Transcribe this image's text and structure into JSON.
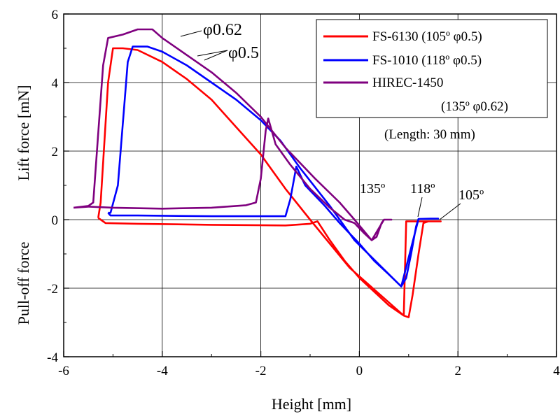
{
  "chart_data": {
    "type": "line",
    "xlabel": "Height  [mm]",
    "ylabel_upper": "Lift force  [mN]",
    "ylabel_lower": "Pull-off force",
    "xlim": [
      -6,
      4
    ],
    "ylim": [
      -4,
      6
    ],
    "x_ticks": [
      "-6",
      "-4",
      "-2",
      "0",
      "2",
      "4"
    ],
    "y_ticks": [
      "-4",
      "-2",
      "0",
      "2",
      "4",
      "6"
    ],
    "grid": true,
    "legend_position": "top-right",
    "legend_note": "(Length:  30 mm)",
    "series": [
      {
        "name": "FS-6130 (105º φ0.5)",
        "color": "#ff0000",
        "points": [
          [
            -5.3,
            0.05
          ],
          [
            -5.25,
            0.0
          ],
          [
            -5.15,
            -0.1
          ],
          [
            -4.5,
            -0.12
          ],
          [
            -3.0,
            -0.15
          ],
          [
            -1.5,
            -0.17
          ],
          [
            -1.0,
            -0.12
          ],
          [
            -0.85,
            -0.05
          ],
          [
            -0.6,
            -0.6
          ],
          [
            -0.3,
            -1.2
          ],
          [
            0,
            -1.7
          ],
          [
            0.3,
            -2.1
          ],
          [
            0.6,
            -2.5
          ],
          [
            0.9,
            -2.8
          ],
          [
            1.0,
            -2.85
          ],
          [
            1.08,
            -2.2
          ],
          [
            1.2,
            -1.0
          ],
          [
            1.3,
            -0.1
          ],
          [
            1.4,
            -0.05
          ],
          [
            1.6,
            -0.05
          ],
          [
            1.65,
            -0.05
          ],
          [
            1.6,
            -0.05
          ],
          [
            0.95,
            -0.05
          ],
          [
            0.9,
            -2.8
          ],
          [
            -0.2,
            -1.4
          ],
          [
            -1.0,
            0.0
          ],
          [
            -1.5,
            0.9
          ],
          [
            -2.0,
            1.9
          ],
          [
            -2.5,
            2.7
          ],
          [
            -3.0,
            3.5
          ],
          [
            -3.5,
            4.1
          ],
          [
            -4.0,
            4.6
          ],
          [
            -4.5,
            4.95
          ],
          [
            -4.8,
            5.0
          ],
          [
            -5.0,
            5.0
          ],
          [
            -5.1,
            4.0
          ],
          [
            -5.25,
            0.5
          ],
          [
            -5.3,
            0.05
          ]
        ]
      },
      {
        "name": "FS-1010 (118º φ0.5)",
        "color": "#0000ff",
        "points": [
          [
            -5.1,
            0.2
          ],
          [
            -5.05,
            0.12
          ],
          [
            -4.5,
            0.12
          ],
          [
            -3.0,
            0.1
          ],
          [
            -2.0,
            0.1
          ],
          [
            -1.5,
            0.1
          ],
          [
            -1.4,
            0.6
          ],
          [
            -1.28,
            1.55
          ],
          [
            -1.1,
            1.0
          ],
          [
            -0.7,
            0.4
          ],
          [
            -0.4,
            -0.1
          ],
          [
            0.0,
            -0.7
          ],
          [
            0.3,
            -1.2
          ],
          [
            0.6,
            -1.6
          ],
          [
            0.85,
            -1.95
          ],
          [
            0.95,
            -1.7
          ],
          [
            1.05,
            -1.0
          ],
          [
            1.15,
            -0.2
          ],
          [
            1.2,
            0.02
          ],
          [
            1.45,
            0.03
          ],
          [
            1.6,
            0.03
          ],
          [
            1.2,
            0.02
          ],
          [
            0.85,
            -1.95
          ],
          [
            -0.1,
            -0.6
          ],
          [
            -0.6,
            0.4
          ],
          [
            -1.2,
            1.5
          ],
          [
            -1.6,
            2.3
          ],
          [
            -2.0,
            2.9
          ],
          [
            -2.5,
            3.5
          ],
          [
            -3.0,
            4.0
          ],
          [
            -3.5,
            4.5
          ],
          [
            -4.0,
            4.9
          ],
          [
            -4.3,
            5.05
          ],
          [
            -4.6,
            5.05
          ],
          [
            -4.7,
            4.6
          ],
          [
            -4.9,
            1.0
          ],
          [
            -5.05,
            0.2
          ],
          [
            -5.1,
            0.2
          ]
        ]
      },
      {
        "name": "HIREC-1450\n(135º φ0.62)",
        "color": "#7f007f",
        "points": [
          [
            -5.8,
            0.35
          ],
          [
            -5.5,
            0.38
          ],
          [
            -5.0,
            0.35
          ],
          [
            -4.0,
            0.32
          ],
          [
            -3.0,
            0.35
          ],
          [
            -2.3,
            0.42
          ],
          [
            -2.1,
            0.5
          ],
          [
            -2.0,
            1.2
          ],
          [
            -1.9,
            2.6
          ],
          [
            -1.85,
            2.95
          ],
          [
            -1.7,
            2.2
          ],
          [
            -1.4,
            1.6
          ],
          [
            -1.0,
            0.9
          ],
          [
            -0.6,
            0.35
          ],
          [
            -0.3,
            0.0
          ],
          [
            -0.1,
            -0.1
          ],
          [
            0.1,
            -0.4
          ],
          [
            0.25,
            -0.6
          ],
          [
            0.35,
            -0.5
          ],
          [
            0.45,
            -0.1
          ],
          [
            0.5,
            0.0
          ],
          [
            0.65,
            0.0
          ],
          [
            0.5,
            0.0
          ],
          [
            0.25,
            -0.6
          ],
          [
            -0.1,
            0.0
          ],
          [
            -0.4,
            0.5
          ],
          [
            -0.9,
            1.2
          ],
          [
            -1.5,
            2.1
          ],
          [
            -2.0,
            3.0
          ],
          [
            -2.5,
            3.7
          ],
          [
            -3.0,
            4.3
          ],
          [
            -3.5,
            4.8
          ],
          [
            -4.0,
            5.3
          ],
          [
            -4.2,
            5.55
          ],
          [
            -4.5,
            5.55
          ],
          [
            -4.8,
            5.4
          ],
          [
            -5.1,
            5.3
          ],
          [
            -5.2,
            4.5
          ],
          [
            -5.4,
            0.5
          ],
          [
            -5.5,
            0.4
          ],
          [
            -5.8,
            0.35
          ]
        ]
      }
    ],
    "annotations": [
      {
        "text": "φ0.62",
        "style": "big"
      },
      {
        "text": "φ0.5",
        "style": "big"
      },
      {
        "text": "135º",
        "style": "normal"
      },
      {
        "text": "118º",
        "style": "normal"
      },
      {
        "text": "105º",
        "style": "normal"
      }
    ]
  }
}
